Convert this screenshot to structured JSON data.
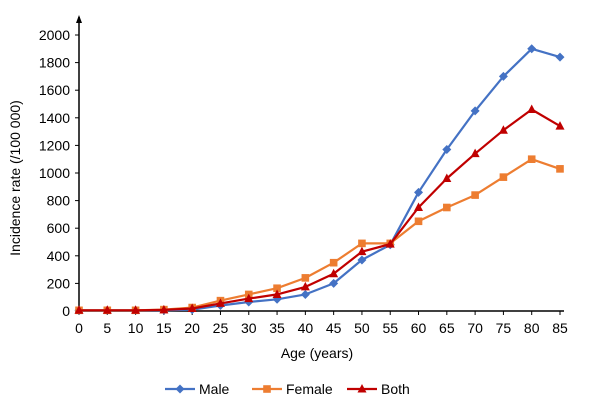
{
  "chart_data": {
    "type": "line",
    "xlabel": "Age (years)",
    "ylabel": "Incidence rate (/100 000)",
    "ylim": [
      0,
      2000
    ],
    "yticks": [
      0,
      200,
      400,
      600,
      800,
      1000,
      1200,
      1400,
      1600,
      1800,
      2000
    ],
    "x": [
      0,
      5,
      10,
      15,
      20,
      25,
      30,
      35,
      40,
      45,
      50,
      55,
      60,
      65,
      70,
      75,
      80,
      85
    ],
    "series": [
      {
        "name": "Male",
        "color": "#4472C4",
        "marker": "diamond",
        "values": [
          5,
          5,
          5,
          5,
          10,
          40,
          65,
          85,
          120,
          200,
          370,
          480,
          860,
          1170,
          1450,
          1700,
          1900,
          1840
        ]
      },
      {
        "name": "Female",
        "color": "#ED7D31",
        "marker": "square",
        "values": [
          5,
          5,
          5,
          10,
          25,
          75,
          120,
          165,
          240,
          350,
          490,
          490,
          650,
          750,
          840,
          970,
          1100,
          1030
        ]
      },
      {
        "name": "Both",
        "color": "#C00000",
        "marker": "triangle",
        "values": [
          5,
          5,
          5,
          8,
          18,
          55,
          90,
          120,
          175,
          270,
          430,
          485,
          750,
          960,
          1140,
          1310,
          1460,
          1340
        ]
      }
    ],
    "legend_position": "bottom",
    "grid": false
  }
}
